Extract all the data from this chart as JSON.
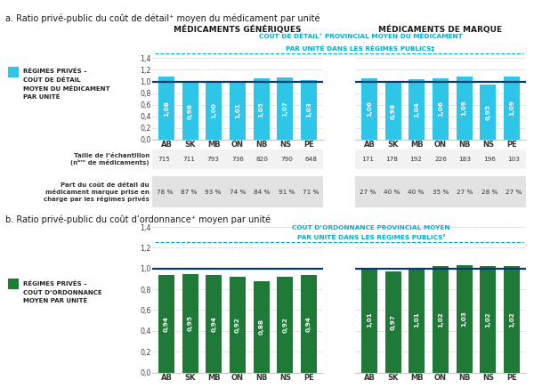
{
  "title_a": "a. Ratio privé-public du coût de détail⁺ moyen du médicament par unité",
  "title_b": "b. Ratio privé-public du coût d’ordonnance⁺ moyen par unité",
  "header_generique": "MÉDICAMENTS GÉNÉRIQUES",
  "header_marque": "MÉDICAMENTS DE MARQUE",
  "annotation_a_line1": "COÛT DE DÉTAIL⁺ PROVINCIAL MOYEN DU MÉDICAMENT",
  "annotation_a_line2": "PAR UNITÉ DANS LES RÉGIMES PUBLICS‡",
  "annotation_b_line1": "COÛT D’ORDONNANCE PROVINCIAL MOYEN",
  "annotation_b_line2": "PAR UNITÉ DANS LES RÉGIMES PUBLICS²",
  "provinces": [
    "AB",
    "SK",
    "MB",
    "ON",
    "NB",
    "NS",
    "PE"
  ],
  "legend_a_line1": "RÉGIMES PRIVÉS –",
  "legend_a_line2": "COÛT DE DÉTAIL",
  "legend_a_line3": "MOYEN DU MÉDICAMENT",
  "legend_a_line4": "PAR UNITÉ",
  "legend_b_line1": "RÉGIMES PRIVÉS –",
  "legend_b_line2": "COÛT D’ORDONNANCE",
  "legend_b_line3": "MOYEN PAR UNITÉ",
  "bar_color_a": "#2DC6E8",
  "bar_color_b": "#1E7A36",
  "line_color": "#003A70",
  "cyan_color": "#00AECC",
  "generique_values_a": [
    1.08,
    0.98,
    1.0,
    1.01,
    1.05,
    1.07,
    1.03
  ],
  "marque_values_a": [
    1.06,
    0.98,
    1.04,
    1.06,
    1.09,
    0.95,
    1.09
  ],
  "generique_values_b": [
    0.94,
    0.95,
    0.94,
    0.92,
    0.88,
    0.92,
    0.94
  ],
  "marque_values_b": [
    1.01,
    0.97,
    1.01,
    1.02,
    1.03,
    1.02,
    1.02
  ],
  "sample_generique": [
    "715",
    "711",
    "793",
    "736",
    "820",
    "790",
    "648"
  ],
  "sample_marque": [
    "171",
    "178",
    "192",
    "226",
    "183",
    "196",
    "103"
  ],
  "pct_generique": [
    "78 %",
    "87 %",
    "93 %",
    "74 %",
    "84 %",
    "91 %",
    "71 %"
  ],
  "pct_marque": [
    "27 %",
    "40 %",
    "40 %",
    "35 %",
    "27 %",
    "28 %",
    "27 %"
  ],
  "table_row1_label": "Taille de l’échantillon\n(nᵇʳᵉ de médicaments)",
  "table_row2_label": "Part du coût de détail du\nmédicament marque prise en\ncharge par les régimes privés",
  "ylim_min": 0.0,
  "ylim_max": 1.4,
  "yticks": [
    0.0,
    0.2,
    0.4,
    0.6,
    0.8,
    1.0,
    1.2,
    1.4
  ],
  "bg_color": "#ffffff",
  "table_bg1": "#F2F2F2",
  "table_bg2": "#E2E2E2"
}
